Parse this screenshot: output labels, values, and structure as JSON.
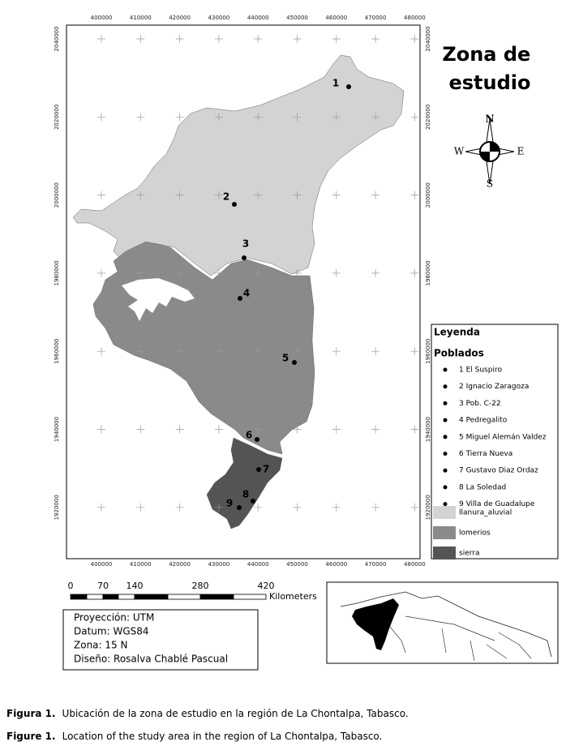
{
  "map": {
    "title": "Zona de estudio",
    "x_ticks": [
      "400000",
      "410000",
      "420000",
      "430000",
      "440000",
      "450000",
      "460000",
      "470000",
      "480000"
    ],
    "y_ticks": [
      "2040000",
      "2020000",
      "2000000",
      "1980000",
      "1960000",
      "1940000",
      "1920000"
    ],
    "compass": {
      "n": "N",
      "s": "S",
      "e": "E",
      "w": "W"
    },
    "point_labels": [
      "1",
      "2",
      "3",
      "4",
      "5",
      "6",
      "7",
      "8",
      "9"
    ],
    "legend": {
      "title": "Leyenda",
      "subtitle": "Poblados",
      "towns": [
        "1 El Suspiro",
        "2 Ignacio Zaragoza",
        "3 Pob. C-22",
        "4 Pedregalito",
        "5 Miguel Alemán Valdez",
        "6 Tierra Nueva",
        "7 Gustavo Diaz Ordaz",
        "8 La Soledad",
        "9 Villa de Guadalupe"
      ],
      "zones": [
        {
          "name": "llanura_aluvial",
          "color": "#d3d3d3"
        },
        {
          "name": "lomerios",
          "color": "#8a8a8a"
        },
        {
          "name": "sierra",
          "color": "#545454"
        }
      ]
    },
    "scale": {
      "labels": [
        "0",
        "70",
        "140",
        "280",
        "420"
      ],
      "unit": "Kilometers"
    },
    "info": [
      "Proyección: UTM",
      "Datum: WGS84",
      "Zona: 15 N",
      "Diseño: Rosalva Chablé Pascual"
    ]
  },
  "captions": [
    {
      "label": "Figura 1.",
      "text": "Ubicación de la zona de estudio en la región de La Chontalpa, Tabasco."
    },
    {
      "label": "Figure 1.",
      "text": "Location of the study area in the region of La Chontalpa, Tabasco."
    }
  ]
}
